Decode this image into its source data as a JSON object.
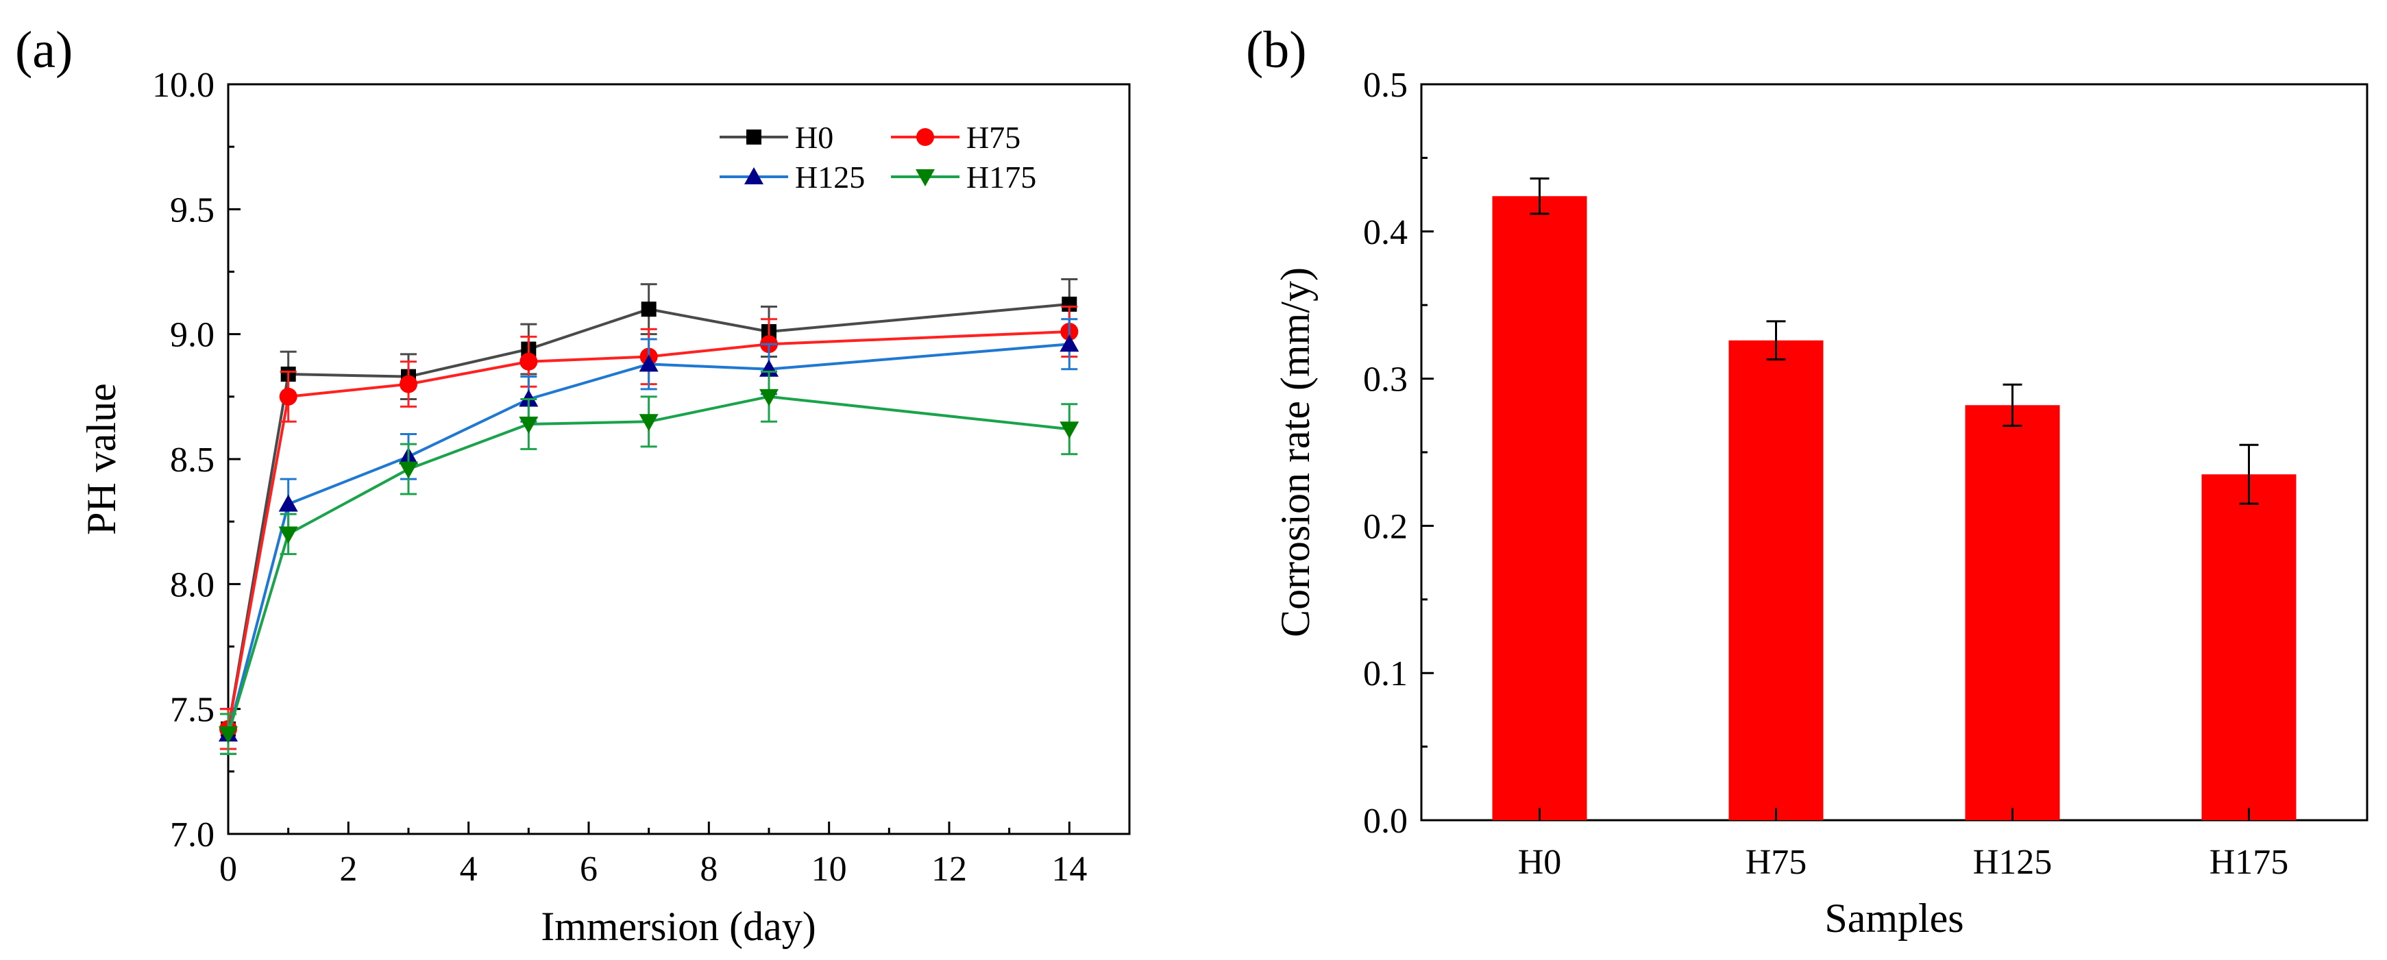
{
  "chart_data": [
    {
      "panel_label": "(a)",
      "type": "line",
      "xlabel": "Immersion (day)",
      "ylabel": "PH value",
      "xlim": [
        0,
        15
      ],
      "ylim": [
        7.0,
        10.0
      ],
      "x_ticks": [
        "0",
        "2",
        "4",
        "6",
        "8",
        "10",
        "12",
        "14"
      ],
      "y_ticks": [
        "7.0",
        "7.5",
        "8.0",
        "8.5",
        "9.0",
        "9.5",
        "10.0"
      ],
      "x": [
        0,
        1,
        3,
        5,
        7,
        9,
        14
      ],
      "series": [
        {
          "name": "H0",
          "color": "#4a4a4a",
          "marker_color": "#000000",
          "marker": "square",
          "values": [
            7.42,
            8.84,
            8.83,
            8.94,
            9.1,
            9.01,
            9.12
          ],
          "errors": [
            0.08,
            0.09,
            0.09,
            0.1,
            0.1,
            0.1,
            0.1
          ]
        },
        {
          "name": "H75",
          "color": "#ff2020",
          "marker_color": "#ff0000",
          "marker": "circle",
          "values": [
            7.42,
            8.75,
            8.8,
            8.89,
            8.91,
            8.96,
            9.01
          ],
          "errors": [
            0.08,
            0.1,
            0.09,
            0.1,
            0.11,
            0.1,
            0.1
          ]
        },
        {
          "name": "H125",
          "color": "#1f78d1",
          "marker_color": "#00008b",
          "marker": "triangle-up",
          "values": [
            7.4,
            8.32,
            8.51,
            8.74,
            8.88,
            8.86,
            8.96
          ],
          "errors": [
            0.08,
            0.1,
            0.09,
            0.09,
            0.1,
            0.1,
            0.1
          ]
        },
        {
          "name": "H175",
          "color": "#1aa34a",
          "marker_color": "#008000",
          "marker": "triangle-down",
          "values": [
            7.4,
            8.2,
            8.46,
            8.64,
            8.65,
            8.75,
            8.62
          ],
          "errors": [
            0.08,
            0.08,
            0.1,
            0.1,
            0.1,
            0.1,
            0.1
          ]
        }
      ]
    },
    {
      "panel_label": "(b)",
      "type": "bar",
      "xlabel": "Samples",
      "ylabel": "Corrosion rate (mm/y)",
      "ylim": [
        0.0,
        0.5
      ],
      "y_ticks": [
        "0.0",
        "0.1",
        "0.2",
        "0.3",
        "0.4",
        "0.5"
      ],
      "categories": [
        "H0",
        "H75",
        "H125",
        "H175"
      ],
      "values": [
        0.424,
        0.326,
        0.282,
        0.235
      ],
      "errors": [
        0.012,
        0.013,
        0.014,
        0.02
      ],
      "bar_color": "#ff0000"
    }
  ]
}
